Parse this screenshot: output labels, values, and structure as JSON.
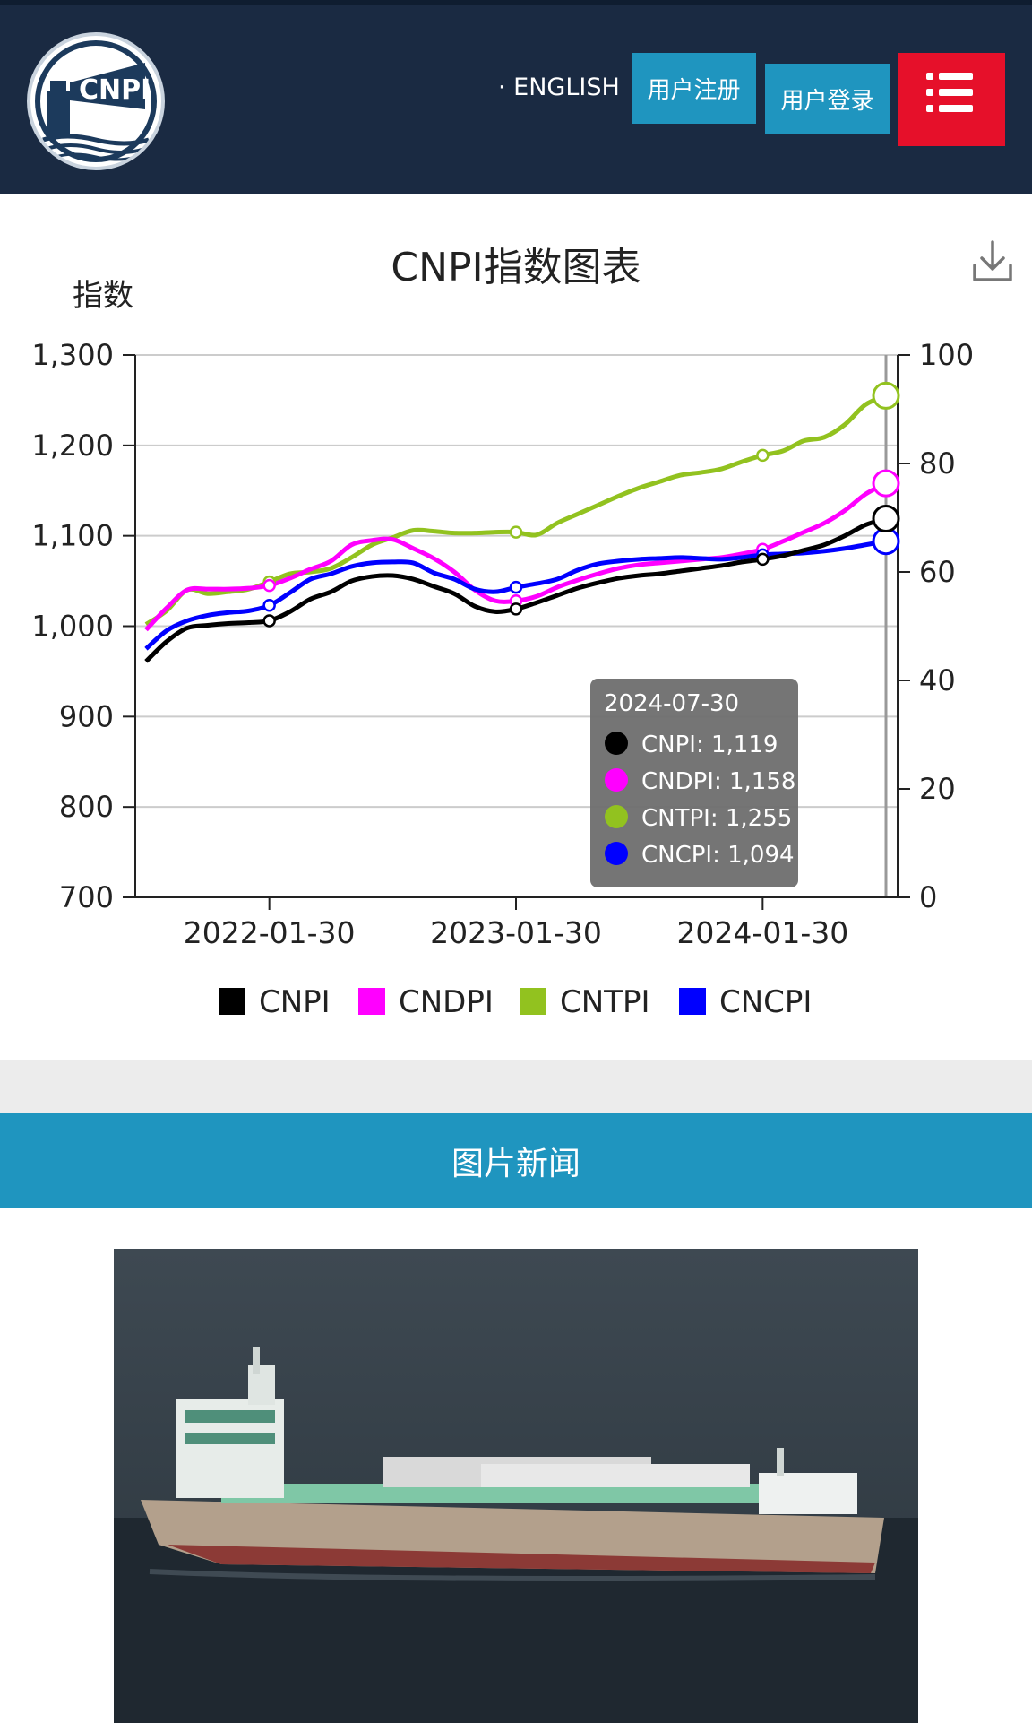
{
  "header": {
    "english_label": "ENGLISH",
    "register_label": "用户注册",
    "login_label": "用户登录",
    "menu_icon": "list-menu-icon",
    "logo_text": "CNPI",
    "colors": {
      "background": "#1a2a42",
      "teal": "#1f95bf",
      "red": "#e6102a"
    }
  },
  "chart_title": "CNPI指数图表",
  "chart_data": {
    "type": "line",
    "title": "CNPI指数图表",
    "ylabel": "指数",
    "ylim": [
      700,
      1300
    ],
    "yticks": [
      "700",
      "800",
      "900",
      "1,000",
      "1,100",
      "1,200",
      "1,300"
    ],
    "y2lim": [
      0,
      100
    ],
    "y2ticks": [
      "0",
      "20",
      "40",
      "60",
      "80",
      "100"
    ],
    "xticks": [
      "2022-01-30",
      "2023-01-30",
      "2024-01-30"
    ],
    "x": [
      "2021-07-30",
      "2021-08-30",
      "2021-09-30",
      "2021-10-30",
      "2021-11-30",
      "2021-12-30",
      "2022-01-30",
      "2022-02-28",
      "2022-03-30",
      "2022-04-30",
      "2022-05-30",
      "2022-06-30",
      "2022-07-30",
      "2022-08-30",
      "2022-09-30",
      "2022-10-30",
      "2022-11-30",
      "2022-12-30",
      "2023-01-30",
      "2023-02-28",
      "2023-03-30",
      "2023-04-30",
      "2023-05-30",
      "2023-06-30",
      "2023-07-30",
      "2023-08-30",
      "2023-09-30",
      "2023-10-30",
      "2023-11-30",
      "2023-12-30",
      "2024-01-30",
      "2024-02-29",
      "2024-03-30",
      "2024-04-30",
      "2024-05-30",
      "2024-06-30",
      "2024-07-30"
    ],
    "series": [
      {
        "name": "CNPI",
        "color": "#000000",
        "values": [
          961,
          983,
          998,
          1001,
          1003,
          1004,
          1006,
          1016,
          1030,
          1038,
          1050,
          1055,
          1056,
          1052,
          1044,
          1036,
          1022,
          1016,
          1019,
          1026,
          1034,
          1042,
          1048,
          1053,
          1056,
          1058,
          1061,
          1064,
          1067,
          1071,
          1074,
          1078,
          1084,
          1090,
          1100,
          1112,
          1119
        ]
      },
      {
        "name": "CNDPI",
        "color": "#ff00ff",
        "values": [
          996,
          1020,
          1040,
          1041,
          1041,
          1042,
          1045,
          1053,
          1063,
          1072,
          1090,
          1095,
          1096,
          1086,
          1075,
          1060,
          1040,
          1028,
          1028,
          1033,
          1043,
          1051,
          1058,
          1064,
          1068,
          1070,
          1072,
          1074,
          1076,
          1080,
          1085,
          1094,
          1104,
          1114,
          1128,
          1146,
          1158
        ]
      },
      {
        "name": "CNTPI",
        "color": "#92c21f",
        "values": [
          1002,
          1017,
          1040,
          1036,
          1038,
          1041,
          1049,
          1058,
          1060,
          1064,
          1076,
          1090,
          1098,
          1106,
          1105,
          1103,
          1103,
          1104,
          1104,
          1101,
          1114,
          1124,
          1134,
          1144,
          1153,
          1160,
          1167,
          1170,
          1174,
          1182,
          1189,
          1194,
          1205,
          1209,
          1223,
          1245,
          1255
        ]
      },
      {
        "name": "CNCPI",
        "color": "#0000ff",
        "values": [
          975,
          995,
          1006,
          1012,
          1015,
          1017,
          1023,
          1037,
          1052,
          1058,
          1066,
          1070,
          1071,
          1070,
          1059,
          1052,
          1041,
          1038,
          1043,
          1047,
          1052,
          1062,
          1069,
          1072,
          1074,
          1075,
          1076,
          1075,
          1074,
          1076,
          1079,
          1080,
          1081,
          1083,
          1086,
          1090,
          1094
        ]
      }
    ],
    "markers_at": [
      "2022-01-30",
      "2023-01-30",
      "2024-01-30"
    ],
    "highlight_date": "2024-07-30",
    "tooltip": {
      "date": "2024-07-30",
      "rows": [
        {
          "label": "CNPI: 1,119",
          "color": "#000000"
        },
        {
          "label": "CNDPI: 1,158",
          "color": "#ff00ff"
        },
        {
          "label": "CNTPI: 1,255",
          "color": "#92c21f"
        },
        {
          "label": "CNCPI: 1,094",
          "color": "#0000ff"
        }
      ]
    },
    "legend": [
      "CNPI",
      "CNDPI",
      "CNTPI",
      "CNCPI"
    ],
    "legend_position": "bottom",
    "grid": true
  },
  "download_icon": "download-icon",
  "news": {
    "title": "图片新闻",
    "image": "cargo-ship-photo"
  }
}
